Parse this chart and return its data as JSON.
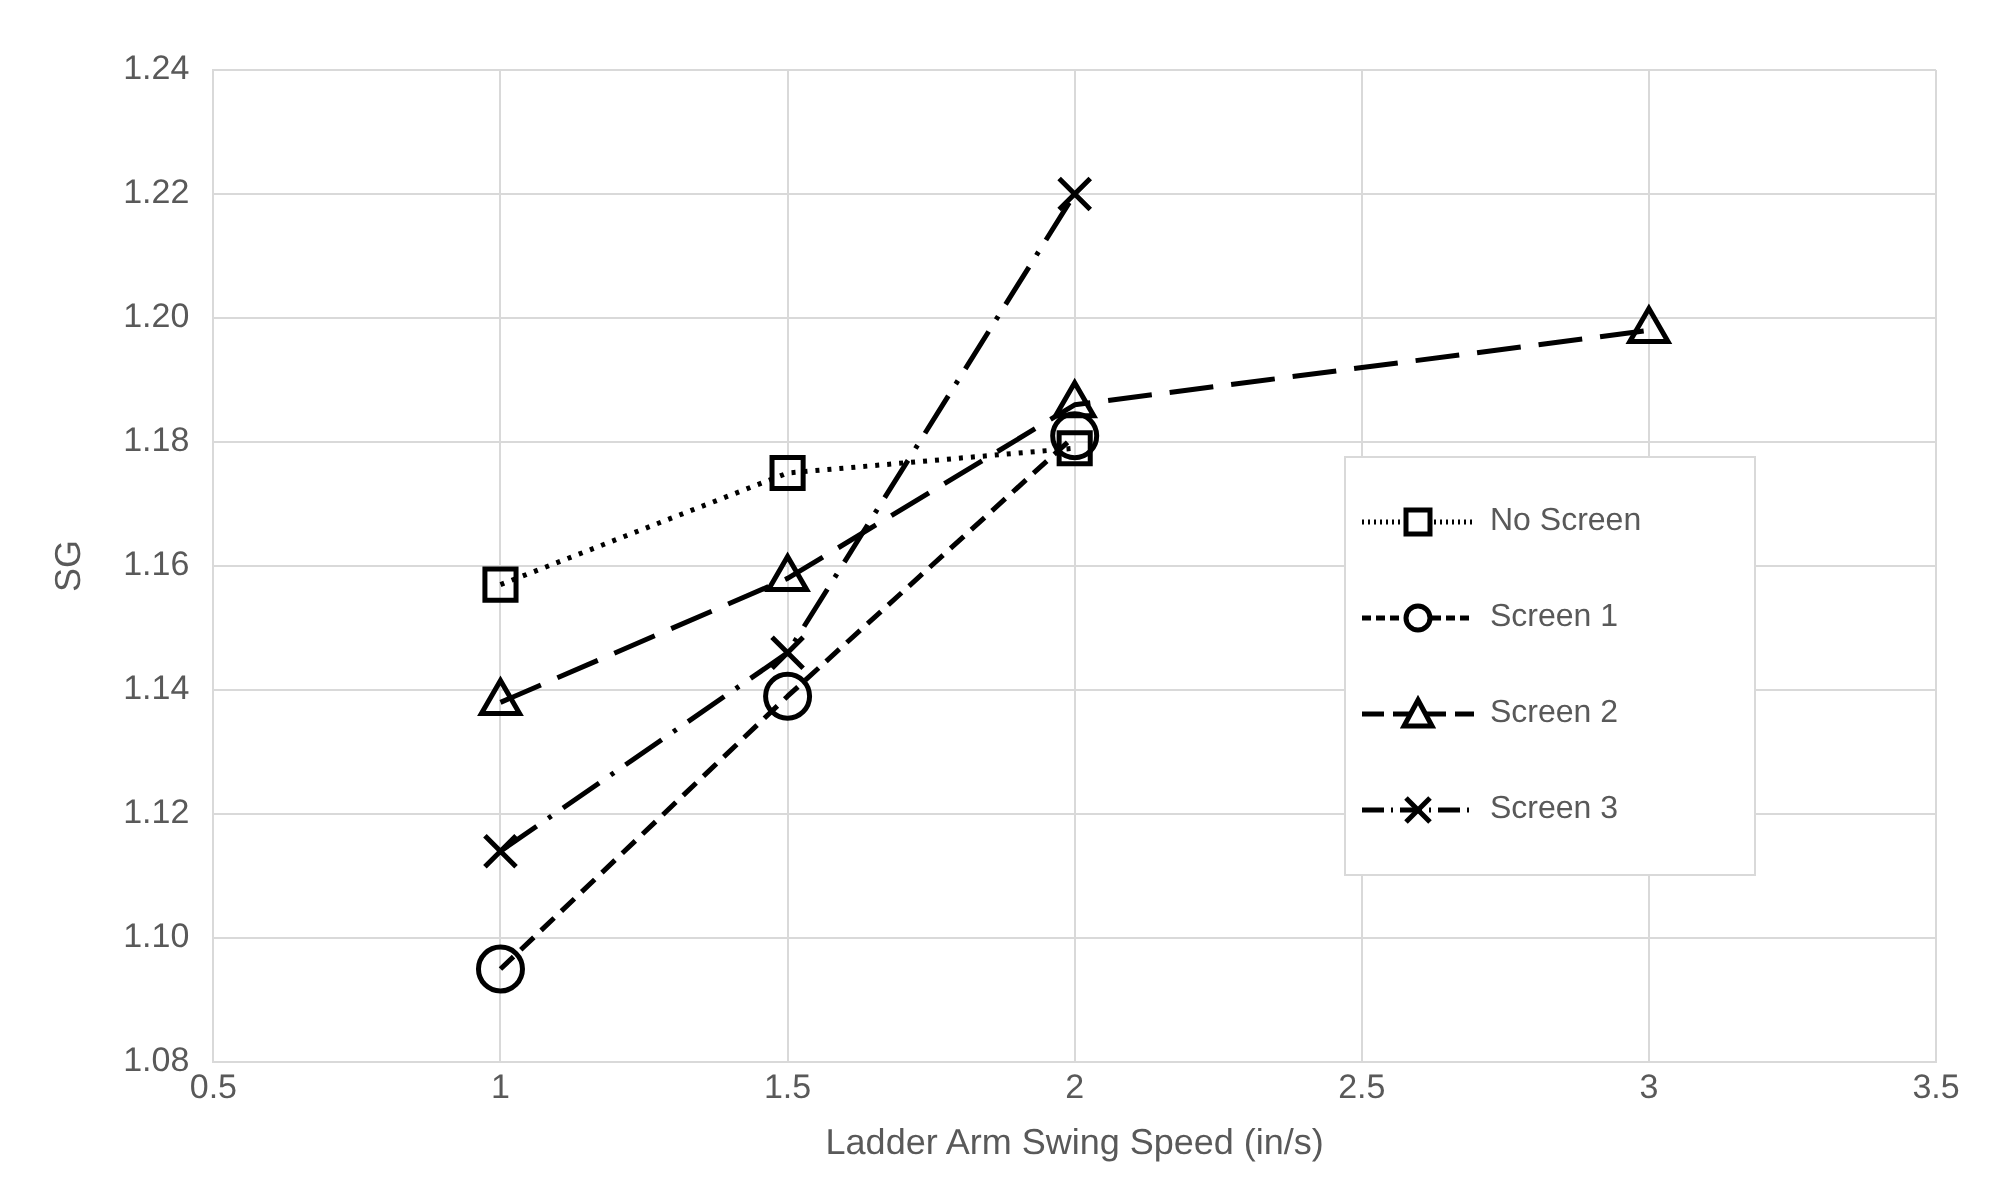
{
  "chart_data": {
    "type": "line",
    "xlabel": "Ladder Arm Swing Speed (in/s)",
    "ylabel": "SG",
    "xlim": [
      0.5,
      3.5
    ],
    "xticks": [
      0.5,
      1,
      1.5,
      2,
      2.5,
      3,
      3.5
    ],
    "ylim": [
      1.08,
      1.24
    ],
    "yticks": [
      {
        "value": 1.08,
        "label": "1.08"
      },
      {
        "value": 1.1,
        "label": "1.10"
      },
      {
        "value": 1.12,
        "label": "1.12"
      },
      {
        "value": 1.14,
        "label": "1.14"
      },
      {
        "value": 1.16,
        "label": "1.16"
      },
      {
        "value": 1.18,
        "label": "1.18"
      },
      {
        "value": 1.2,
        "label": "1.20"
      },
      {
        "value": 1.22,
        "label": "1.22"
      },
      {
        "value": 1.24,
        "label": "1.24"
      }
    ],
    "grid": true,
    "legend": "right",
    "series": [
      {
        "name": "No Screen",
        "color": "#000000",
        "x": [
          1,
          1.5,
          2
        ],
        "values": [
          1.157,
          1.175,
          1.179
        ],
        "marker": "square",
        "line_style": "dotted"
      },
      {
        "name": "Screen 1",
        "color": "#000000",
        "x": [
          1,
          1.5,
          2
        ],
        "values": [
          1.095,
          1.139,
          1.181
        ],
        "marker": "circle",
        "line_style": "dashed"
      },
      {
        "name": "Screen 2",
        "color": "#000000",
        "x": [
          1,
          1.5,
          2,
          3
        ],
        "values": [
          1.138,
          1.158,
          1.186,
          1.198
        ],
        "marker": "triangle",
        "line_style": "dashed"
      },
      {
        "name": "Screen 3",
        "color": "#000000",
        "x": [
          1,
          1.5,
          2
        ],
        "values": [
          1.114,
          1.146,
          1.22
        ],
        "marker": "cross",
        "line_style": "dashed"
      }
    ]
  }
}
